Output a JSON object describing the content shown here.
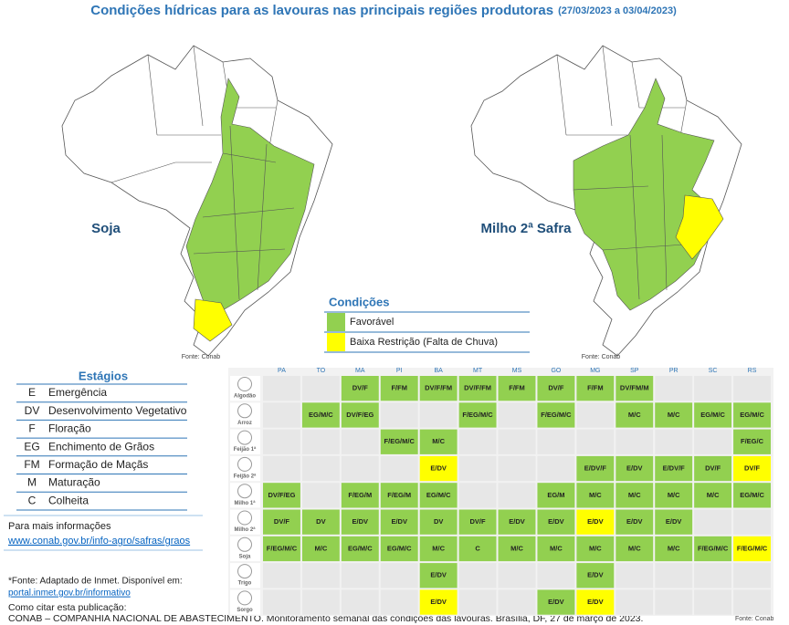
{
  "header": {
    "title": "Condições hídricas para as lavouras nas principais regiões produtoras",
    "period": "(27/03/2023 a 03/04/2023)"
  },
  "maps": [
    {
      "label": "Soja"
    },
    {
      "label": "Milho 2ª Safra"
    }
  ],
  "map_source": "Fonte: Conab",
  "legend": {
    "title": "Condições",
    "items": [
      {
        "label": "Favorável",
        "color": "#92d050"
      },
      {
        "label": "Baixa Restrição (Falta de Chuva)",
        "color": "#ffff00"
      }
    ]
  },
  "stages": {
    "title": "Estágios",
    "rows": [
      {
        "code": "E",
        "name": "Emergência"
      },
      {
        "code": "DV",
        "name": "Desenvolvimento Vegetativo"
      },
      {
        "code": "F",
        "name": "Floração"
      },
      {
        "code": "EG",
        "name": "Enchimento de Grãos"
      },
      {
        "code": "FM",
        "name": "Formação de Maçãs"
      },
      {
        "code": "M",
        "name": "Maturação"
      },
      {
        "code": "C",
        "name": "Colheita"
      }
    ]
  },
  "info": {
    "text": "Para mais informações",
    "link": "www.conab.gov.br/info-agro/safras/graos"
  },
  "footnote": {
    "text": "*Fonte: Adaptado de Inmet. Disponível em:",
    "link": "portal.inmet.gov.br/informativo"
  },
  "citation": {
    "label": "Como citar esta publicação:",
    "text": "CONAB – COMPANHIA NACIONAL DE ABASTECIMENTO. Monitoramento semanal das condições das lavouras. Brasília, DF, 27 de março de 2023."
  },
  "table": {
    "columns": [
      "PA",
      "TO",
      "MA",
      "PI",
      "BA",
      "MT",
      "MS",
      "GO",
      "MG",
      "SP",
      "PR",
      "SC",
      "RS"
    ],
    "rows": [
      {
        "crop": "Algodão",
        "cells": [
          null,
          null,
          {
            "text": "DV/F",
            "condition": 0
          },
          {
            "text": "F/FM",
            "condition": 0
          },
          {
            "text": "DV/F/FM",
            "condition": 0
          },
          {
            "text": "DV/F/FM",
            "condition": 0
          },
          {
            "text": "F/FM",
            "condition": 0
          },
          {
            "text": "DV/F",
            "condition": 0
          },
          {
            "text": "F/FM",
            "condition": 0
          },
          {
            "text": "DV/FM/M",
            "condition": 0
          },
          null,
          null,
          null
        ]
      },
      {
        "crop": "Arroz",
        "cells": [
          null,
          {
            "text": "EG/M/C",
            "condition": 0
          },
          {
            "text": "DV/F/EG",
            "condition": 0
          },
          null,
          null,
          {
            "text": "F/EG/M/C",
            "condition": 0
          },
          null,
          {
            "text": "F/EG/M/C",
            "condition": 0
          },
          null,
          {
            "text": "M/C",
            "condition": 0
          },
          {
            "text": "M/C",
            "condition": 0
          },
          {
            "text": "EG/M/C",
            "condition": 0
          },
          {
            "text": "EG/M/C",
            "condition": 0
          }
        ]
      },
      {
        "crop": "Feijão 1ª",
        "cells": [
          null,
          null,
          null,
          {
            "text": "F/EG/M/C",
            "condition": 0
          },
          {
            "text": "M/C",
            "condition": 0
          },
          null,
          null,
          null,
          null,
          null,
          null,
          null,
          {
            "text": "F/EG/C",
            "condition": 0
          }
        ]
      },
      {
        "crop": "Feijão 2ª",
        "cells": [
          null,
          null,
          null,
          null,
          {
            "text": "E/DV",
            "condition": 1
          },
          null,
          null,
          null,
          {
            "text": "E/DV/F",
            "condition": 0
          },
          {
            "text": "E/DV",
            "condition": 0
          },
          {
            "text": "E/DV/F",
            "condition": 0
          },
          {
            "text": "DV/F",
            "condition": 0
          },
          {
            "text": "DV/F",
            "condition": 1
          }
        ]
      },
      {
        "crop": "Milho 1ª",
        "cells": [
          {
            "text": "DV/F/EG",
            "condition": 0
          },
          null,
          {
            "text": "F/EG/M",
            "condition": 0
          },
          {
            "text": "F/EG/M",
            "condition": 0
          },
          {
            "text": "EG/M/C",
            "condition": 0
          },
          null,
          null,
          {
            "text": "EG/M",
            "condition": 0
          },
          {
            "text": "M/C",
            "condition": 0
          },
          {
            "text": "M/C",
            "condition": 0
          },
          {
            "text": "M/C",
            "condition": 0
          },
          {
            "text": "M/C",
            "condition": 0
          },
          {
            "text": "EG/M/C",
            "condition": 0
          }
        ]
      },
      {
        "crop": "Milho 2ª",
        "cells": [
          {
            "text": "DV/F",
            "condition": 0
          },
          {
            "text": "DV",
            "condition": 0
          },
          {
            "text": "E/DV",
            "condition": 0
          },
          {
            "text": "E/DV",
            "condition": 0
          },
          {
            "text": "DV",
            "condition": 0
          },
          {
            "text": "DV/F",
            "condition": 0
          },
          {
            "text": "E/DV",
            "condition": 0
          },
          {
            "text": "E/DV",
            "condition": 0
          },
          {
            "text": "E/DV",
            "condition": 1
          },
          {
            "text": "E/DV",
            "condition": 0
          },
          {
            "text": "E/DV",
            "condition": 0
          },
          null,
          null
        ]
      },
      {
        "crop": "Soja",
        "cells": [
          {
            "text": "F/EG/M/C",
            "condition": 0
          },
          {
            "text": "M/C",
            "condition": 0
          },
          {
            "text": "EG/M/C",
            "condition": 0
          },
          {
            "text": "EG/M/C",
            "condition": 0
          },
          {
            "text": "M/C",
            "condition": 0
          },
          {
            "text": "C",
            "condition": 0
          },
          {
            "text": "M/C",
            "condition": 0
          },
          {
            "text": "M/C",
            "condition": 0
          },
          {
            "text": "M/C",
            "condition": 0
          },
          {
            "text": "M/C",
            "condition": 0
          },
          {
            "text": "M/C",
            "condition": 0
          },
          {
            "text": "F/EG/M/C",
            "condition": 0
          },
          {
            "text": "F/EG/M/C",
            "condition": 1
          }
        ]
      },
      {
        "crop": "Trigo",
        "cells": [
          null,
          null,
          null,
          null,
          {
            "text": "E/DV",
            "condition": 0
          },
          null,
          null,
          null,
          {
            "text": "E/DV",
            "condition": 0
          },
          null,
          null,
          null,
          null
        ]
      },
      {
        "crop": "Sorgo",
        "cells": [
          null,
          null,
          null,
          null,
          {
            "text": "E/DV",
            "condition": 1
          },
          null,
          null,
          {
            "text": "E/DV",
            "condition": 0
          },
          {
            "text": "E/DV",
            "condition": 1
          },
          null,
          null,
          null,
          null
        ]
      }
    ],
    "source": "Fonte: Conab"
  }
}
